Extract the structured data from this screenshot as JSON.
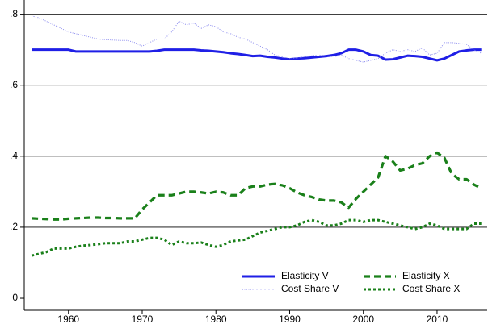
{
  "chart_data": {
    "type": "line",
    "x": [
      1955,
      1956,
      1957,
      1958,
      1959,
      1960,
      1961,
      1962,
      1963,
      1964,
      1965,
      1966,
      1967,
      1968,
      1969,
      1970,
      1971,
      1972,
      1973,
      1974,
      1975,
      1976,
      1977,
      1978,
      1979,
      1980,
      1981,
      1982,
      1983,
      1984,
      1985,
      1986,
      1987,
      1988,
      1989,
      1990,
      1991,
      1992,
      1993,
      1994,
      1995,
      1996,
      1997,
      1998,
      1999,
      2000,
      2001,
      2002,
      2003,
      2004,
      2005,
      2006,
      2007,
      2008,
      2009,
      2010,
      2011,
      2012,
      2013,
      2014,
      2015,
      2016
    ],
    "series": [
      {
        "name": "Elasticity V",
        "color": "#1f1fe6",
        "style": "solid",
        "values": [
          0.7,
          0.7,
          0.7,
          0.7,
          0.7,
          0.7,
          0.695,
          0.695,
          0.695,
          0.695,
          0.695,
          0.695,
          0.695,
          0.695,
          0.695,
          0.695,
          0.695,
          0.697,
          0.7,
          0.7,
          0.7,
          0.7,
          0.7,
          0.698,
          0.697,
          0.695,
          0.693,
          0.69,
          0.688,
          0.685,
          0.682,
          0.683,
          0.68,
          0.678,
          0.675,
          0.673,
          0.675,
          0.676,
          0.678,
          0.68,
          0.682,
          0.685,
          0.69,
          0.7,
          0.7,
          0.695,
          0.685,
          0.683,
          0.672,
          0.673,
          0.678,
          0.683,
          0.682,
          0.68,
          0.675,
          0.67,
          0.675,
          0.685,
          0.695,
          0.698,
          0.7,
          0.7
        ]
      },
      {
        "name": "Elasticity X",
        "color": "#1a801a",
        "style": "dashed",
        "values": [
          0.225,
          0.224,
          0.223,
          0.222,
          0.222,
          0.224,
          0.225,
          0.226,
          0.227,
          0.227,
          0.226,
          0.226,
          0.225,
          0.225,
          0.225,
          0.25,
          0.27,
          0.29,
          0.29,
          0.29,
          0.295,
          0.3,
          0.3,
          0.298,
          0.295,
          0.3,
          0.298,
          0.29,
          0.29,
          0.31,
          0.315,
          0.315,
          0.32,
          0.322,
          0.318,
          0.31,
          0.298,
          0.29,
          0.285,
          0.278,
          0.275,
          0.275,
          0.27,
          0.255,
          0.28,
          0.3,
          0.32,
          0.34,
          0.4,
          0.385,
          0.36,
          0.365,
          0.375,
          0.38,
          0.4,
          0.41,
          0.395,
          0.35,
          0.335,
          0.335,
          0.32,
          0.31
        ]
      },
      {
        "name": "Cost Share V",
        "color": "#8a8aee",
        "style": "dotted",
        "values": [
          0.795,
          0.79,
          0.78,
          0.77,
          0.76,
          0.75,
          0.745,
          0.74,
          0.735,
          0.73,
          0.728,
          0.727,
          0.726,
          0.726,
          0.72,
          0.71,
          0.72,
          0.73,
          0.73,
          0.75,
          0.78,
          0.77,
          0.775,
          0.76,
          0.77,
          0.765,
          0.75,
          0.745,
          0.735,
          0.73,
          0.72,
          0.71,
          0.7,
          0.685,
          0.68,
          0.675,
          0.677,
          0.68,
          0.683,
          0.685,
          0.682,
          0.68,
          0.685,
          0.675,
          0.67,
          0.665,
          0.67,
          0.675,
          0.69,
          0.7,
          0.695,
          0.7,
          0.695,
          0.705,
          0.685,
          0.69,
          0.72,
          0.72,
          0.718,
          0.715,
          0.7,
          0.69
        ]
      },
      {
        "name": "Cost Share X",
        "color": "#1a801a",
        "style": "dotted-bold",
        "values": [
          0.12,
          0.125,
          0.13,
          0.14,
          0.14,
          0.14,
          0.145,
          0.148,
          0.15,
          0.152,
          0.155,
          0.155,
          0.155,
          0.16,
          0.16,
          0.165,
          0.17,
          0.17,
          0.165,
          0.15,
          0.16,
          0.155,
          0.155,
          0.157,
          0.15,
          0.145,
          0.15,
          0.16,
          0.163,
          0.165,
          0.175,
          0.185,
          0.19,
          0.195,
          0.2,
          0.2,
          0.205,
          0.215,
          0.22,
          0.215,
          0.205,
          0.205,
          0.21,
          0.22,
          0.22,
          0.215,
          0.22,
          0.22,
          0.215,
          0.21,
          0.205,
          0.2,
          0.195,
          0.2,
          0.21,
          0.205,
          0.195,
          0.195,
          0.195,
          0.195,
          0.21,
          0.21
        ]
      }
    ],
    "xlim": [
      1954,
      2016.8
    ],
    "xticks": [
      1960,
      1970,
      1980,
      1990,
      2000,
      2010
    ],
    "ylim": [
      -0.034,
      0.84
    ],
    "yticks": [
      0,
      {
        "value": 0.2,
        "label": ".2"
      },
      {
        "value": 0.4,
        "label": ".4"
      },
      {
        "value": 0.6,
        "label": ".6"
      },
      {
        "value": 0.8,
        "label": ".8"
      }
    ],
    "grid": true,
    "legend": "lower-right"
  }
}
